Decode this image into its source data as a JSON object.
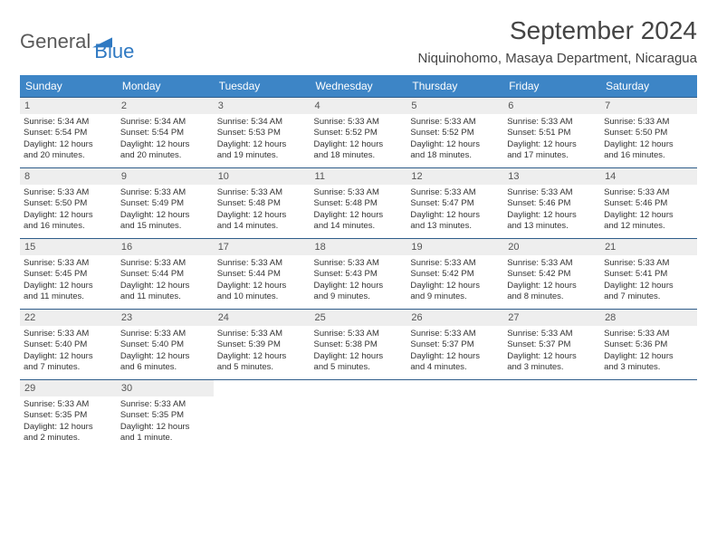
{
  "brand": {
    "part1": "General",
    "part2": "Blue"
  },
  "title": "September 2024",
  "location": "Niquinohomo, Masaya Department, Nicaragua",
  "colors": {
    "header_bg": "#3d85c6",
    "header_text": "#ffffff",
    "daynum_bg": "#eeeeee",
    "row_border": "#2f5d8a",
    "brand_blue": "#2f79c2"
  },
  "day_names": [
    "Sunday",
    "Monday",
    "Tuesday",
    "Wednesday",
    "Thursday",
    "Friday",
    "Saturday"
  ],
  "days": [
    {
      "n": "1",
      "sunrise": "Sunrise: 5:34 AM",
      "sunset": "Sunset: 5:54 PM",
      "d1": "Daylight: 12 hours",
      "d2": "and 20 minutes."
    },
    {
      "n": "2",
      "sunrise": "Sunrise: 5:34 AM",
      "sunset": "Sunset: 5:54 PM",
      "d1": "Daylight: 12 hours",
      "d2": "and 20 minutes."
    },
    {
      "n": "3",
      "sunrise": "Sunrise: 5:34 AM",
      "sunset": "Sunset: 5:53 PM",
      "d1": "Daylight: 12 hours",
      "d2": "and 19 minutes."
    },
    {
      "n": "4",
      "sunrise": "Sunrise: 5:33 AM",
      "sunset": "Sunset: 5:52 PM",
      "d1": "Daylight: 12 hours",
      "d2": "and 18 minutes."
    },
    {
      "n": "5",
      "sunrise": "Sunrise: 5:33 AM",
      "sunset": "Sunset: 5:52 PM",
      "d1": "Daylight: 12 hours",
      "d2": "and 18 minutes."
    },
    {
      "n": "6",
      "sunrise": "Sunrise: 5:33 AM",
      "sunset": "Sunset: 5:51 PM",
      "d1": "Daylight: 12 hours",
      "d2": "and 17 minutes."
    },
    {
      "n": "7",
      "sunrise": "Sunrise: 5:33 AM",
      "sunset": "Sunset: 5:50 PM",
      "d1": "Daylight: 12 hours",
      "d2": "and 16 minutes."
    },
    {
      "n": "8",
      "sunrise": "Sunrise: 5:33 AM",
      "sunset": "Sunset: 5:50 PM",
      "d1": "Daylight: 12 hours",
      "d2": "and 16 minutes."
    },
    {
      "n": "9",
      "sunrise": "Sunrise: 5:33 AM",
      "sunset": "Sunset: 5:49 PM",
      "d1": "Daylight: 12 hours",
      "d2": "and 15 minutes."
    },
    {
      "n": "10",
      "sunrise": "Sunrise: 5:33 AM",
      "sunset": "Sunset: 5:48 PM",
      "d1": "Daylight: 12 hours",
      "d2": "and 14 minutes."
    },
    {
      "n": "11",
      "sunrise": "Sunrise: 5:33 AM",
      "sunset": "Sunset: 5:48 PM",
      "d1": "Daylight: 12 hours",
      "d2": "and 14 minutes."
    },
    {
      "n": "12",
      "sunrise": "Sunrise: 5:33 AM",
      "sunset": "Sunset: 5:47 PM",
      "d1": "Daylight: 12 hours",
      "d2": "and 13 minutes."
    },
    {
      "n": "13",
      "sunrise": "Sunrise: 5:33 AM",
      "sunset": "Sunset: 5:46 PM",
      "d1": "Daylight: 12 hours",
      "d2": "and 13 minutes."
    },
    {
      "n": "14",
      "sunrise": "Sunrise: 5:33 AM",
      "sunset": "Sunset: 5:46 PM",
      "d1": "Daylight: 12 hours",
      "d2": "and 12 minutes."
    },
    {
      "n": "15",
      "sunrise": "Sunrise: 5:33 AM",
      "sunset": "Sunset: 5:45 PM",
      "d1": "Daylight: 12 hours",
      "d2": "and 11 minutes."
    },
    {
      "n": "16",
      "sunrise": "Sunrise: 5:33 AM",
      "sunset": "Sunset: 5:44 PM",
      "d1": "Daylight: 12 hours",
      "d2": "and 11 minutes."
    },
    {
      "n": "17",
      "sunrise": "Sunrise: 5:33 AM",
      "sunset": "Sunset: 5:44 PM",
      "d1": "Daylight: 12 hours",
      "d2": "and 10 minutes."
    },
    {
      "n": "18",
      "sunrise": "Sunrise: 5:33 AM",
      "sunset": "Sunset: 5:43 PM",
      "d1": "Daylight: 12 hours",
      "d2": "and 9 minutes."
    },
    {
      "n": "19",
      "sunrise": "Sunrise: 5:33 AM",
      "sunset": "Sunset: 5:42 PM",
      "d1": "Daylight: 12 hours",
      "d2": "and 9 minutes."
    },
    {
      "n": "20",
      "sunrise": "Sunrise: 5:33 AM",
      "sunset": "Sunset: 5:42 PM",
      "d1": "Daylight: 12 hours",
      "d2": "and 8 minutes."
    },
    {
      "n": "21",
      "sunrise": "Sunrise: 5:33 AM",
      "sunset": "Sunset: 5:41 PM",
      "d1": "Daylight: 12 hours",
      "d2": "and 7 minutes."
    },
    {
      "n": "22",
      "sunrise": "Sunrise: 5:33 AM",
      "sunset": "Sunset: 5:40 PM",
      "d1": "Daylight: 12 hours",
      "d2": "and 7 minutes."
    },
    {
      "n": "23",
      "sunrise": "Sunrise: 5:33 AM",
      "sunset": "Sunset: 5:40 PM",
      "d1": "Daylight: 12 hours",
      "d2": "and 6 minutes."
    },
    {
      "n": "24",
      "sunrise": "Sunrise: 5:33 AM",
      "sunset": "Sunset: 5:39 PM",
      "d1": "Daylight: 12 hours",
      "d2": "and 5 minutes."
    },
    {
      "n": "25",
      "sunrise": "Sunrise: 5:33 AM",
      "sunset": "Sunset: 5:38 PM",
      "d1": "Daylight: 12 hours",
      "d2": "and 5 minutes."
    },
    {
      "n": "26",
      "sunrise": "Sunrise: 5:33 AM",
      "sunset": "Sunset: 5:37 PM",
      "d1": "Daylight: 12 hours",
      "d2": "and 4 minutes."
    },
    {
      "n": "27",
      "sunrise": "Sunrise: 5:33 AM",
      "sunset": "Sunset: 5:37 PM",
      "d1": "Daylight: 12 hours",
      "d2": "and 3 minutes."
    },
    {
      "n": "28",
      "sunrise": "Sunrise: 5:33 AM",
      "sunset": "Sunset: 5:36 PM",
      "d1": "Daylight: 12 hours",
      "d2": "and 3 minutes."
    },
    {
      "n": "29",
      "sunrise": "Sunrise: 5:33 AM",
      "sunset": "Sunset: 5:35 PM",
      "d1": "Daylight: 12 hours",
      "d2": "and 2 minutes."
    },
    {
      "n": "30",
      "sunrise": "Sunrise: 5:33 AM",
      "sunset": "Sunset: 5:35 PM",
      "d1": "Daylight: 12 hours",
      "d2": "and 1 minute."
    }
  ]
}
